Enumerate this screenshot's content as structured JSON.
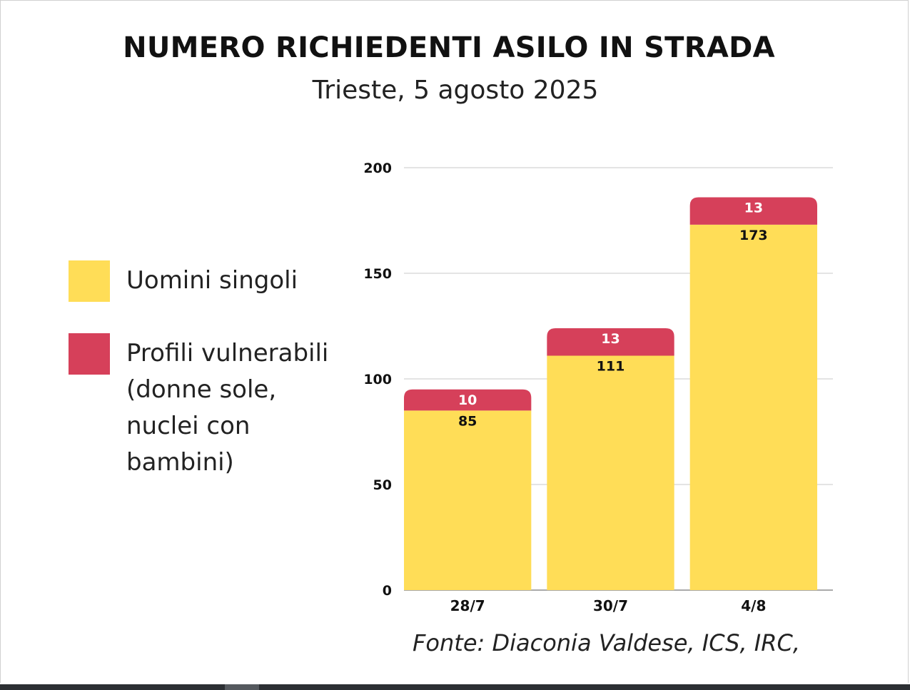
{
  "chart_data": {
    "type": "bar",
    "stacked": true,
    "title": "NUMERO RICHIEDENTI ASILO IN STRADA",
    "subtitle": "Trieste, 5 agosto 2025",
    "categories": [
      "28/7",
      "30/7",
      "4/8"
    ],
    "series": [
      {
        "name": "Uomini singoli",
        "values": [
          85,
          111,
          173
        ],
        "color": "#ffdd57",
        "label_color": "#111111"
      },
      {
        "name": "Profili vulnerabili\n(donne sole,\nnuclei con\nbambini)",
        "values": [
          10,
          13,
          13
        ],
        "color": "#d6405a",
        "label_color": "#ffffff"
      }
    ],
    "ylim": [
      0,
      200
    ],
    "yticks": [
      "0",
      "50",
      "100",
      "150",
      "200"
    ],
    "grid": true,
    "legend_position": "left",
    "source": "Fonte: Diaconia Valdese, ICS, IRC,"
  }
}
